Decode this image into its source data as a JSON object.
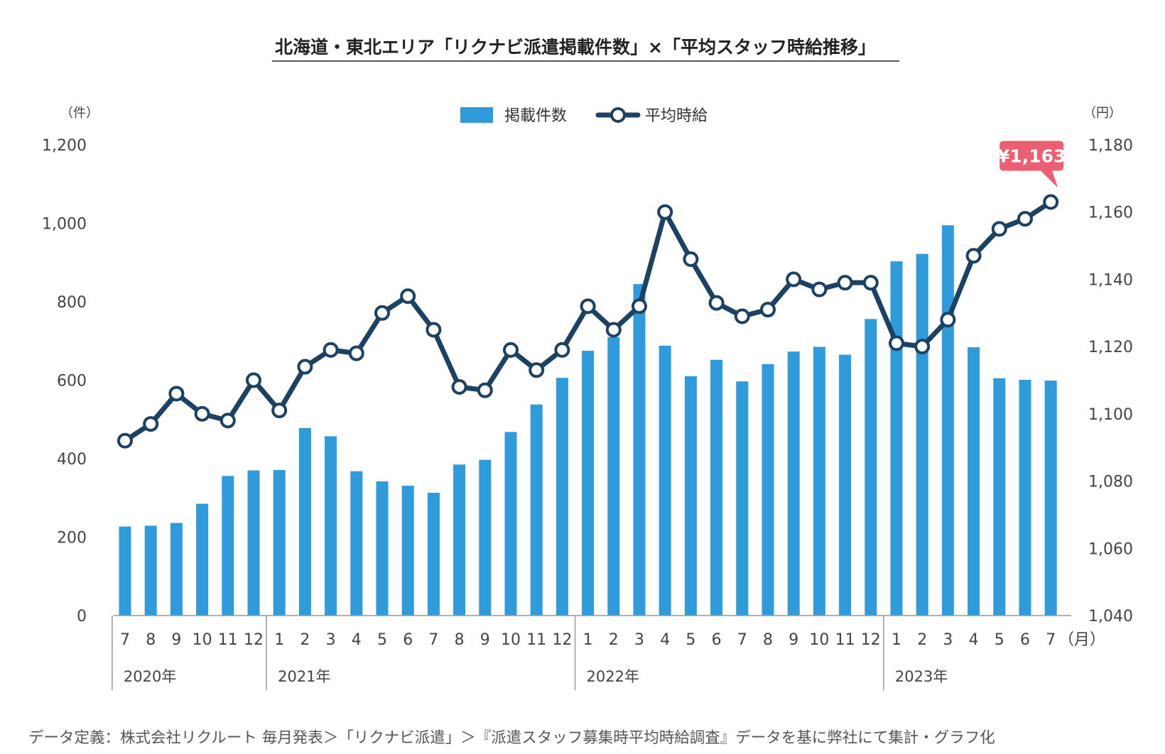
{
  "colors": {
    "bar": "#2f9bdb",
    "line": "#1b4263",
    "callout": "#ec5f72",
    "axis": "#999999"
  },
  "chart_data": {
    "type": "bar+line",
    "title": "北海道・東北エリア「リクナビ派遣掲載件数」×「平均スタッフ時給推移」",
    "y_left_unit": "（件）",
    "y_right_unit": "（円）",
    "x_unit": "（月）",
    "y_left_ticks": [
      "1,200",
      "1,000",
      "800",
      "600",
      "400",
      "200",
      "0"
    ],
    "y_right_ticks": [
      "1,180",
      "1,160",
      "1,140",
      "1,120",
      "1,100",
      "1,080",
      "1,060",
      "1,040"
    ],
    "ylim_left": [
      0,
      1200
    ],
    "ylim_right": [
      1040,
      1180
    ],
    "legend": {
      "bar": "掲載件数",
      "line": "平均時給",
      "position": "top-center"
    },
    "categories": [
      "7",
      "8",
      "9",
      "10",
      "11",
      "12",
      "1",
      "2",
      "3",
      "4",
      "5",
      "6",
      "7",
      "8",
      "9",
      "10",
      "11",
      "12",
      "1",
      "2",
      "3",
      "4",
      "5",
      "6",
      "7",
      "8",
      "9",
      "10",
      "11",
      "12",
      "1",
      "2",
      "3",
      "4",
      "5",
      "6",
      "7"
    ],
    "years": [
      {
        "label": "2020年",
        "start": 0,
        "count": 6
      },
      {
        "label": "2021年",
        "start": 6,
        "count": 12
      },
      {
        "label": "2022年",
        "start": 18,
        "count": 12
      },
      {
        "label": "2023年",
        "start": 30,
        "count": 7
      }
    ],
    "series": [
      {
        "name": "掲載件数",
        "type": "bar",
        "values": [
          227,
          229,
          236,
          285,
          356,
          370,
          371,
          478,
          457,
          368,
          342,
          331,
          313,
          385,
          397,
          468,
          538,
          606,
          675,
          710,
          845,
          688,
          610,
          652,
          597,
          641,
          673,
          685,
          665,
          756,
          903,
          922,
          995,
          684,
          605,
          601,
          599
        ]
      },
      {
        "name": "平均時給",
        "type": "line",
        "values": [
          1092,
          1097,
          1106,
          1100,
          1098,
          1110,
          1101,
          1114,
          1119,
          1118,
          1130,
          1135,
          1125,
          1108,
          1107,
          1119,
          1113,
          1119,
          1132,
          1125,
          1132,
          1160,
          1146,
          1133,
          1129,
          1131,
          1140,
          1137,
          1139,
          1139,
          1121,
          1120,
          1128,
          1147,
          1155,
          1158,
          1163
        ]
      }
    ],
    "annotation": {
      "text": "¥1,163",
      "index": 36,
      "series": "平均時給"
    },
    "footnote": "データ定義：株式会社リクルート 毎月発表＞「リクナビ派遣」＞『派遣スタッフ募集時平均時給調査』データを基に弊社にて集計・グラフ化"
  }
}
